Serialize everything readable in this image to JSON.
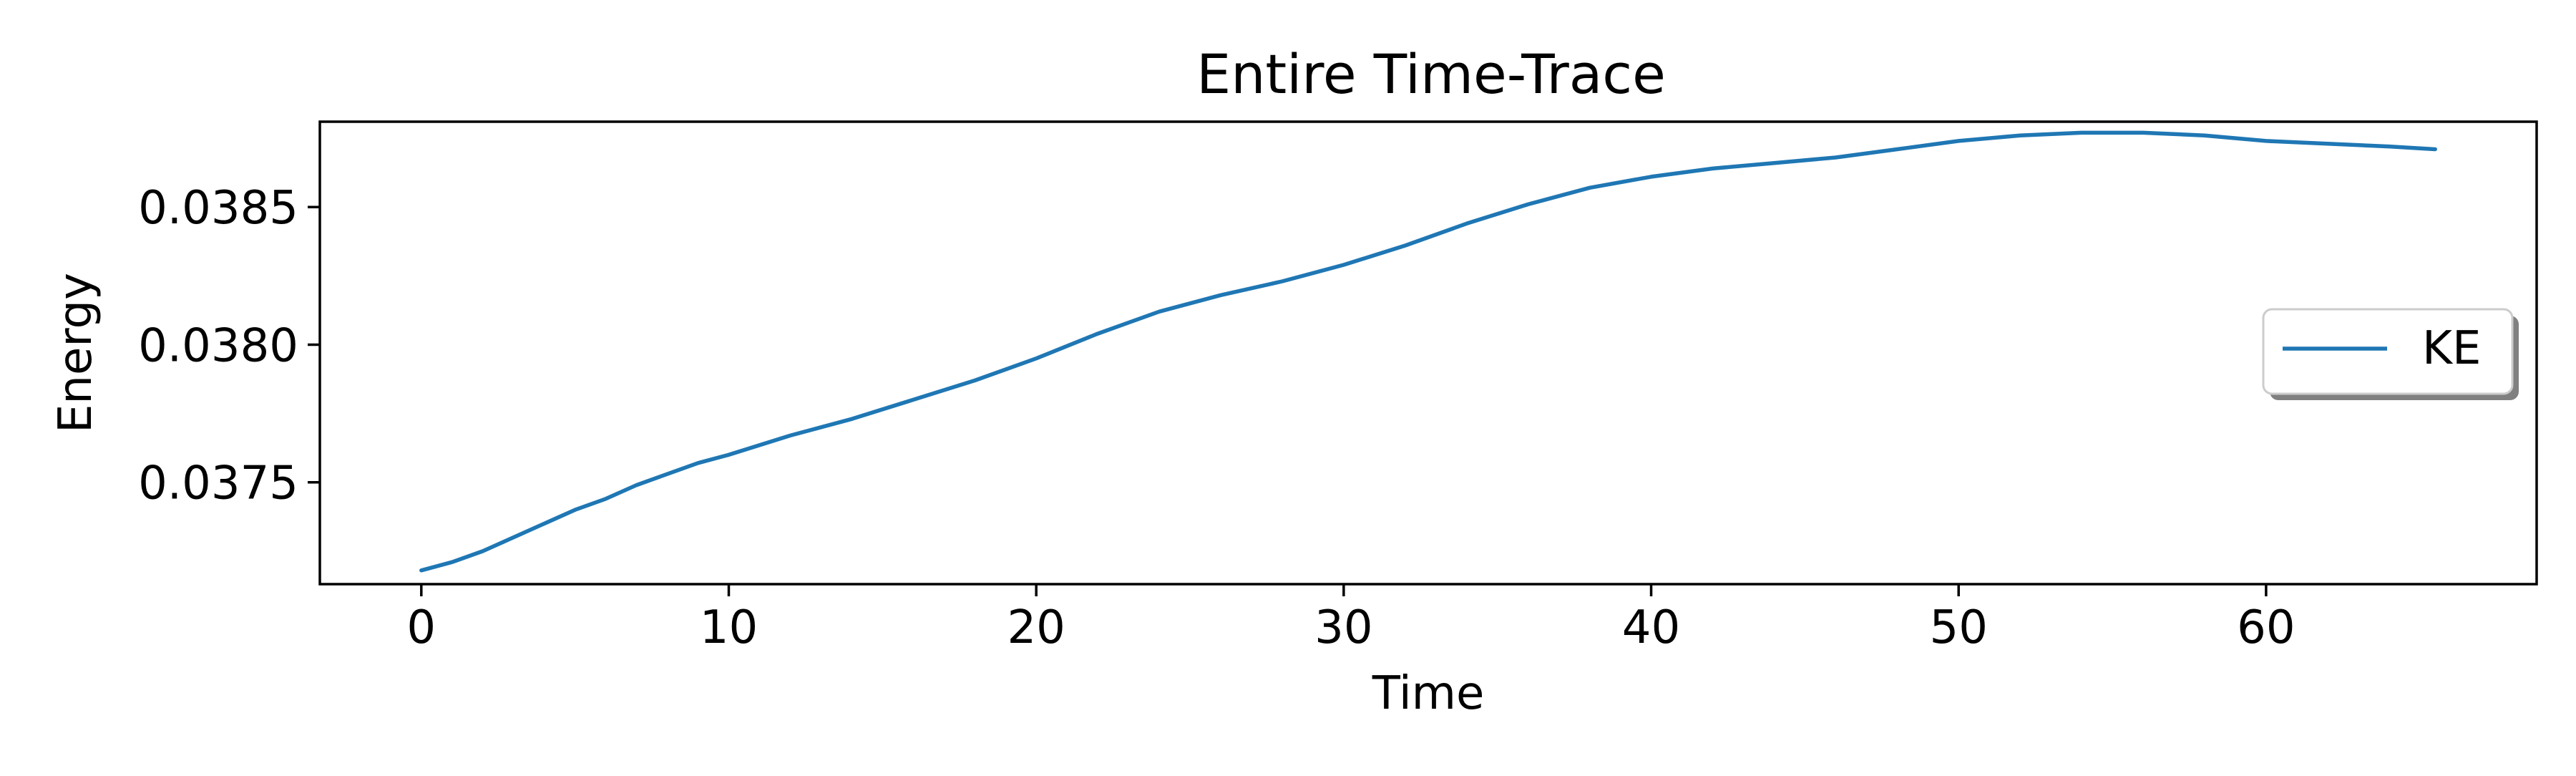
{
  "chart_data": {
    "type": "line",
    "title": "Entire Time-Trace",
    "xlabel": "Time",
    "ylabel": "Energy",
    "xlim": [
      -3.3,
      68.8
    ],
    "ylim": [
      0.03713,
      0.03881
    ],
    "xticks": [
      0,
      10,
      20,
      30,
      40,
      50,
      60
    ],
    "xtick_labels": [
      "0",
      "10",
      "20",
      "30",
      "40",
      "50",
      "60"
    ],
    "yticks": [
      0.0375,
      0.038,
      0.0385
    ],
    "ytick_labels": [
      "0.0375",
      "0.0380",
      "0.0385"
    ],
    "grid": false,
    "legend": {
      "position": "center-right",
      "entries": [
        "KE"
      ]
    },
    "series": [
      {
        "name": "KE",
        "color": "#1f77b4",
        "x": [
          0,
          1,
          2,
          3,
          4,
          5,
          6,
          7,
          8,
          9,
          10,
          12,
          14,
          16,
          18,
          20,
          22,
          23,
          24,
          25,
          26,
          28,
          30,
          32,
          34,
          36,
          38,
          40,
          42,
          44,
          46,
          48,
          50,
          52,
          54,
          55,
          56,
          58,
          60,
          62,
          64,
          65.5
        ],
        "y": [
          0.03718,
          0.03721,
          0.03725,
          0.0373,
          0.03735,
          0.0374,
          0.03744,
          0.03749,
          0.03753,
          0.03757,
          0.0376,
          0.03767,
          0.03773,
          0.0378,
          0.03787,
          0.03795,
          0.03804,
          0.03808,
          0.03812,
          0.03815,
          0.03818,
          0.03823,
          0.03829,
          0.03836,
          0.03844,
          0.03851,
          0.03857,
          0.03861,
          0.03864,
          0.03866,
          0.03868,
          0.03871,
          0.03874,
          0.03876,
          0.03877,
          0.03877,
          0.03877,
          0.03876,
          0.03874,
          0.03873,
          0.03872,
          0.03871
        ]
      }
    ]
  }
}
